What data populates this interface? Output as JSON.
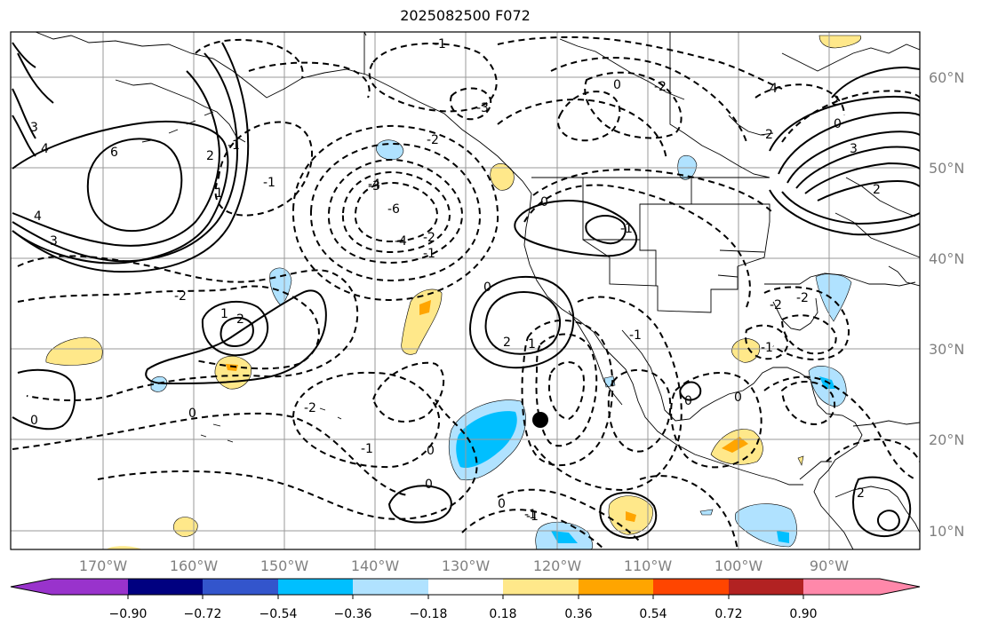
{
  "title": "2025082500 F072",
  "map": {
    "lon_labels": [
      "170°W",
      "160°W",
      "150°W",
      "140°W",
      "130°W",
      "120°W",
      "110°W",
      "100°W",
      "90°W"
    ],
    "lat_labels": [
      "60°N",
      "50°N",
      "40°N",
      "30°N",
      "20°N",
      "10°N"
    ],
    "contour_labels": [
      "-1",
      "-3",
      "-4",
      "-2",
      "-3",
      "-2",
      "-1",
      "-6",
      "-4",
      "-2",
      "-1",
      "0",
      "-1",
      "-2",
      "-1",
      "0",
      "-2",
      "-1",
      "0",
      "-1",
      "0",
      "0",
      "-2",
      "-1",
      "0",
      "-1",
      "0",
      "0",
      "-1",
      "-2",
      "2",
      "1",
      "2",
      "0",
      "1",
      "2",
      "3",
      "4",
      "6",
      "1",
      "4",
      "3",
      "2",
      "0",
      "3",
      "2",
      "4",
      "0",
      "-2",
      "2"
    ],
    "colors": {
      "contour": "#000000",
      "grid": "#9a9a9a",
      "marker": "#000000"
    }
  },
  "colorbar": {
    "tick_labels": [
      "−0.90",
      "−0.72",
      "−0.54",
      "−0.36",
      "−0.18",
      "0.18",
      "0.36",
      "0.54",
      "0.72",
      "0.90"
    ],
    "colors": [
      "#9933cc",
      "#000080",
      "#3355cc",
      "#00bfff",
      "#b0e2ff",
      "#ffffff",
      "#ffe88a",
      "#ffa500",
      "#ff4500",
      "#b22222",
      "#ff88aa"
    ]
  }
}
